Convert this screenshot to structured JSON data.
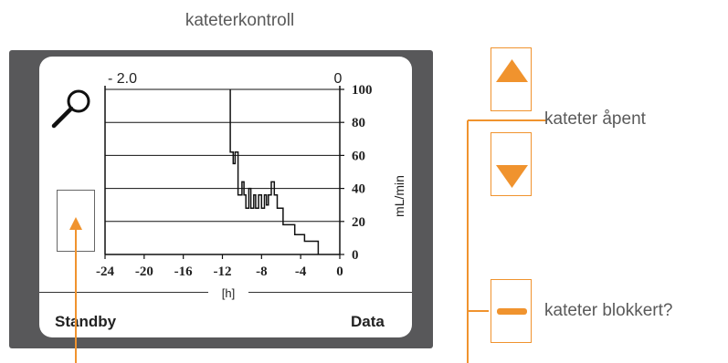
{
  "title": "kateterkontroll",
  "screen": {
    "footer_left": "Standby",
    "footer_right": "Data",
    "x_unit_label": "[h]",
    "zoom_icon": "magnifier-icon"
  },
  "chart_data": {
    "type": "line",
    "title": "",
    "xlabel": "[h]",
    "ylabel": "mL/min",
    "xlim": [
      -24,
      0
    ],
    "ylim": [
      0,
      100
    ],
    "x_ticks": [
      "-24",
      "-20",
      "-16",
      "-12",
      "-8",
      "-4",
      "0"
    ],
    "y_ticks": [
      "0",
      "20",
      "40",
      "60",
      "80",
      "100"
    ],
    "top_ticks": [
      "- 2.0",
      "0"
    ],
    "grid": true,
    "series": [
      {
        "x": [
          -11.2,
          -11.2,
          -10.9,
          -10.9,
          -10.7,
          -10.7,
          -10.4,
          -10.4,
          -10.0,
          -10.0,
          -9.8,
          -9.8,
          -9.6,
          -9.6,
          -9.3,
          -9.3,
          -9.1,
          -9.1,
          -8.8,
          -8.8,
          -8.6,
          -8.6,
          -8.3,
          -8.3,
          -8.0,
          -8.0,
          -7.7,
          -7.7,
          -7.5,
          -7.5,
          -7.3,
          -7.3,
          -7.0,
          -7.0,
          -6.7,
          -6.7,
          -6.4,
          -6.4,
          -5.8,
          -5.8,
          -4.6,
          -4.6,
          -3.6,
          -3.6,
          -2.2,
          -2.2
        ],
        "y": [
          100,
          62,
          62,
          55,
          55,
          62,
          62,
          36,
          36,
          44,
          44,
          36,
          36,
          28,
          28,
          40,
          40,
          28,
          28,
          36,
          36,
          28,
          28,
          36,
          36,
          28,
          28,
          36,
          36,
          30,
          30,
          36,
          36,
          44,
          44,
          36,
          36,
          28,
          28,
          18,
          18,
          12,
          12,
          8,
          8,
          0
        ]
      }
    ]
  },
  "controls": {
    "up_icon": "up-arrow-icon",
    "down_icon": "down-arrow-icon",
    "minus_icon": "minus-icon",
    "label_open": "kateter åpent",
    "label_blocked": "kateter blokkert?"
  },
  "colors": {
    "accent": "#f0932e",
    "device_frame": "#58585a",
    "text_gray": "#5a5a5a"
  }
}
